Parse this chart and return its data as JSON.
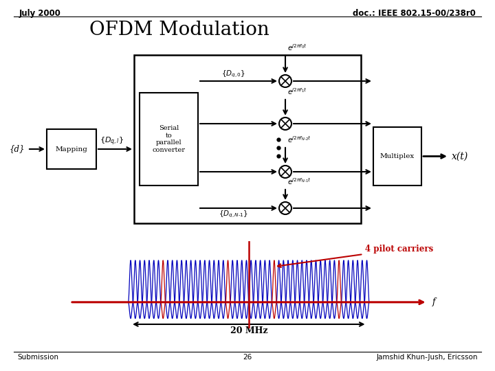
{
  "title": "OFDM Modulation",
  "header_left": "July 2000",
  "header_right": "doc.: IEEE 802.15-00/238r0",
  "footer_left": "Submission",
  "footer_center": "26",
  "footer_right": "Jamshid Khun-Jush, Ericsson",
  "annotation_pilot": "4 pilot carriers",
  "label_20MHz": "20 MHz",
  "label_f": "f",
  "bg_color": "#ffffff",
  "text_color": "#000000",
  "red_color": "#bb0000",
  "blue_color": "#0000bb",
  "n_carriers": 52,
  "pilot_indices": [
    7,
    21,
    31,
    45
  ]
}
